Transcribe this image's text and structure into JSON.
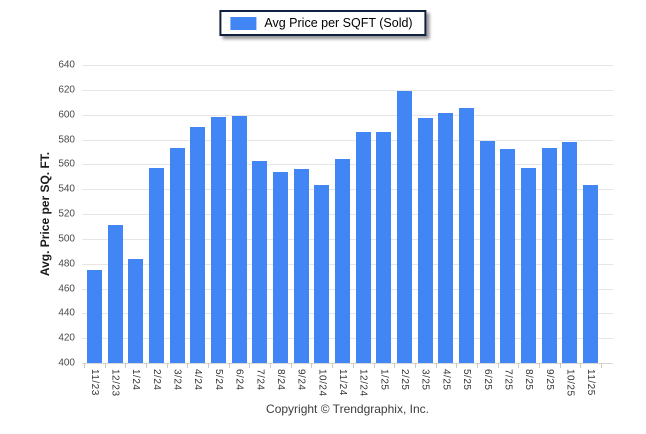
{
  "legend": {
    "label": "Avg Price per SQFT (Sold)",
    "swatch_color": "#4285f4"
  },
  "chart_data": {
    "type": "bar",
    "title": "",
    "xlabel": "",
    "ylabel": "Avg. Price per SQ. FT.",
    "ylim": [
      400,
      640
    ],
    "ytick_step": 20,
    "grid": true,
    "legend_position": "top-center",
    "bar_color": "#4285f4",
    "grid_color": "#e6e6e6",
    "categories": [
      "11/23",
      "12/23",
      "1/24",
      "2/24",
      "3/24",
      "4/24",
      "5/24",
      "6/24",
      "7/24",
      "8/24",
      "9/24",
      "10/24",
      "11/24",
      "12/24",
      "1/25",
      "2/25",
      "3/25",
      "4/25",
      "5/25",
      "6/25",
      "7/25",
      "8/25",
      "9/25",
      "10/25",
      "11/25"
    ],
    "series": [
      {
        "name": "Avg Price per SQFT (Sold)",
        "values": [
          475,
          511,
          484,
          557,
          573,
          590,
          598,
          599,
          563,
          554,
          556,
          543,
          564,
          586,
          586,
          619,
          597,
          601,
          605,
          579,
          572,
          557,
          573,
          578,
          543
        ]
      }
    ]
  },
  "footer": {
    "copyright": "Copyright © Trendgraphix, Inc."
  }
}
